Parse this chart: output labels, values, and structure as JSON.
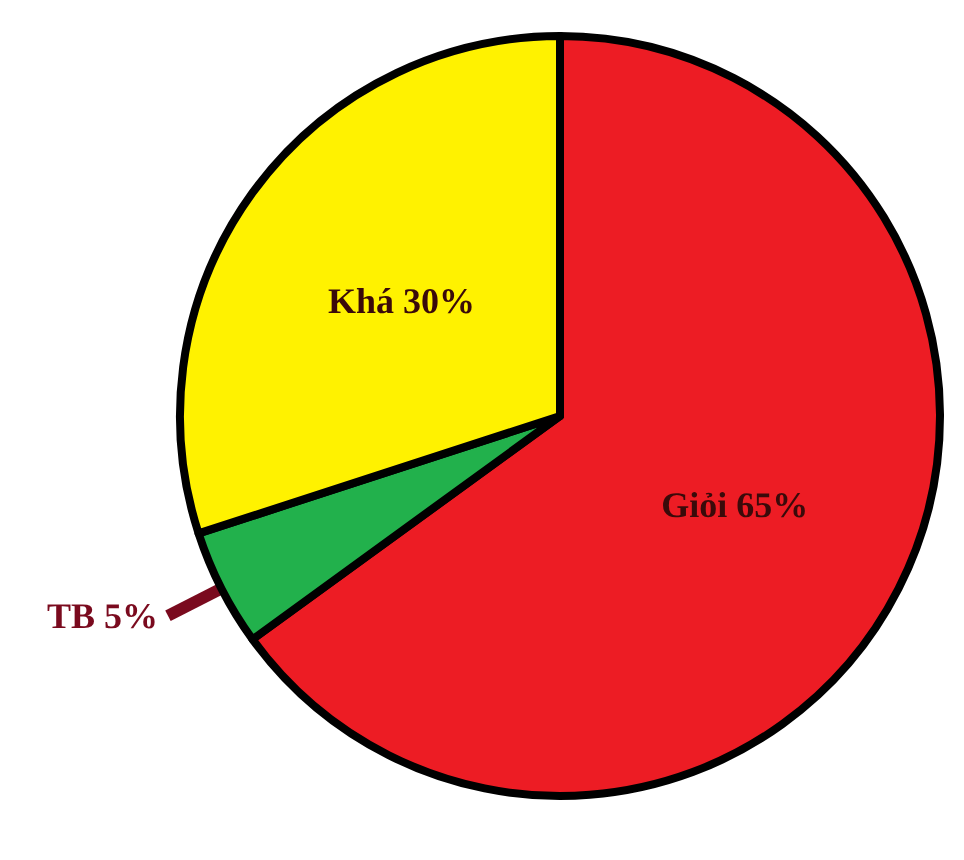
{
  "chart_data": {
    "type": "pie",
    "categories": [
      "Giỏi",
      "TB",
      "Khá"
    ],
    "values": [
      65,
      5,
      30
    ],
    "value_labels": [
      "65%",
      "5%",
      "30%"
    ],
    "colors": [
      "#ed1c24",
      "#22b14c",
      "#fff200"
    ],
    "legend": false
  }
}
